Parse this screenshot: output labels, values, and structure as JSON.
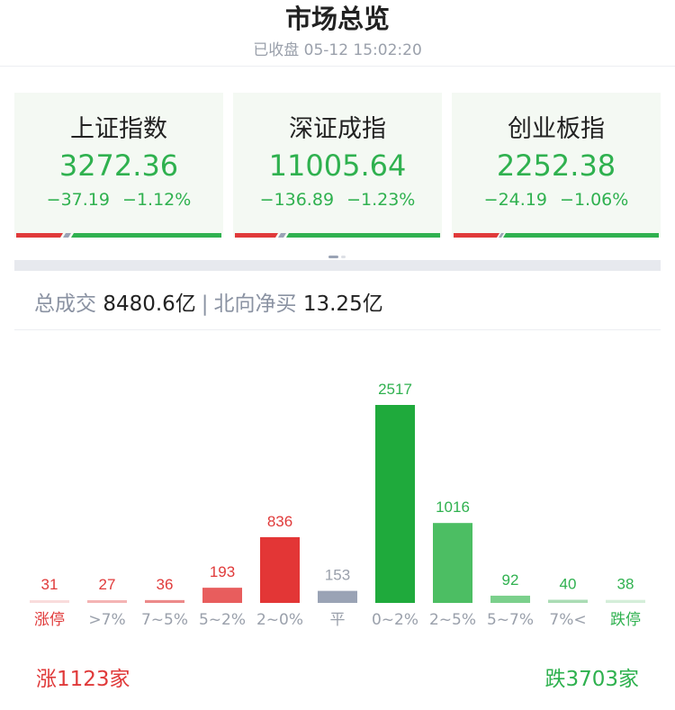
{
  "header": {
    "title": "市场总览",
    "subtitle": "已收盘 05-12 15:02:20"
  },
  "indices": [
    {
      "name": "上证指数",
      "value": "3272.36",
      "change": "−37.19",
      "pct": "−1.12%"
    },
    {
      "name": "深证成指",
      "value": "11005.64",
      "change": "−136.89",
      "pct": "−1.23%"
    },
    {
      "name": "创业板指",
      "value": "2252.38",
      "change": "−24.19",
      "pct": "−1.06%"
    }
  ],
  "summary": {
    "turnover_label": "总成交",
    "turnover": "8480.6亿",
    "north_label": "北向净买",
    "north": "13.25亿"
  },
  "colors": {
    "up": "#e03a3a",
    "down": "#2fb14f",
    "flat": "#9aa3b5"
  },
  "chart_data": {
    "type": "bar",
    "categories": [
      "涨停",
      ">7%",
      "7~5%",
      "5~2%",
      "2~0%",
      "平",
      "0~2%",
      "2~5%",
      "5~7%",
      "7%<",
      "跌停"
    ],
    "values": [
      31,
      27,
      36,
      193,
      836,
      153,
      2517,
      1016,
      92,
      40,
      38
    ],
    "colors": [
      "#f9dcdc",
      "#f4b4b4",
      "#ec8a8a",
      "#e85d5d",
      "#e33636",
      "#9aa3b5",
      "#1faa3c",
      "#4cbe63",
      "#7bd08c",
      "#aadcb4",
      "#d4eed9"
    ],
    "label_colors": [
      "#e03a3a",
      "#e03a3a",
      "#e03a3a",
      "#e03a3a",
      "#e03a3a",
      "#9aa0ab",
      "#2fb14f",
      "#2fb14f",
      "#2fb14f",
      "#2fb14f",
      "#2fb14f"
    ],
    "tick_colors": [
      "#e03a3a",
      "#9aa0ab",
      "#9aa0ab",
      "#9aa0ab",
      "#9aa0ab",
      "#9aa0ab",
      "#9aa0ab",
      "#9aa0ab",
      "#9aa0ab",
      "#9aa0ab",
      "#2fb14f"
    ]
  },
  "footer": {
    "up": "涨1123家",
    "down": "跌3703家",
    "up_count": 1123,
    "flat_count": 153,
    "down_count": 3703
  }
}
